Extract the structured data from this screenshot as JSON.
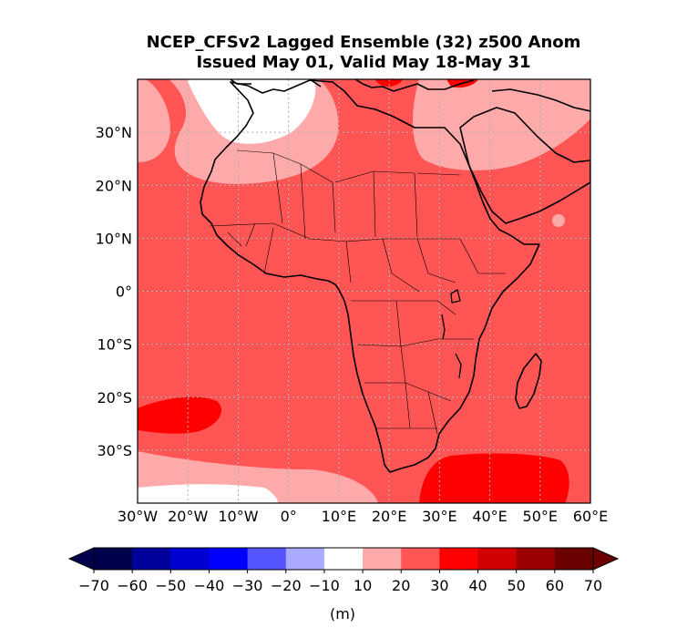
{
  "title_line1": "NCEP_CFSv2 Lagged Ensemble (32) z500 Anom",
  "title_line2": "Issued May 01, Valid May 18-May 31",
  "lat_labels": [
    {
      "value": 30,
      "label": "30°N"
    },
    {
      "value": 20,
      "label": "20°N"
    },
    {
      "value": 10,
      "label": "10°N"
    },
    {
      "value": 0,
      "label": "0°"
    },
    {
      "value": -10,
      "label": "10°S"
    },
    {
      "value": -20,
      "label": "20°S"
    },
    {
      "value": -30,
      "label": "30°S"
    }
  ],
  "lon_labels": [
    {
      "value": -30,
      "label": "30°W"
    },
    {
      "value": -20,
      "label": "20°W"
    },
    {
      "value": -10,
      "label": "10°W"
    },
    {
      "value": 0,
      "label": "0°"
    },
    {
      "value": 10,
      "label": "10°E"
    },
    {
      "value": 20,
      "label": "20°E"
    },
    {
      "value": 30,
      "label": "30°E"
    },
    {
      "value": 40,
      "label": "40°E"
    },
    {
      "value": 50,
      "label": "50°E"
    },
    {
      "value": 60,
      "label": "60°E"
    }
  ],
  "map_extent": {
    "lon_min": -30,
    "lon_max": 60,
    "lat_min": -40,
    "lat_max": 40
  },
  "colorbar": {
    "ticks": [
      "−70",
      "−60",
      "−50",
      "−40",
      "−30",
      "−20",
      "−10",
      "10",
      "20",
      "30",
      "40",
      "50",
      "60",
      "70"
    ],
    "colors": [
      "#00004c",
      "#00009a",
      "#0000d2",
      "#0000ff",
      "#5555ff",
      "#aaaaff",
      "#ffffff",
      "#ffaaaa",
      "#ff5555",
      "#ff0000",
      "#d20000",
      "#9a0000",
      "#6a0000"
    ],
    "under_color": "#00004c",
    "over_color": "#6a0000",
    "units": "(m)"
  },
  "field_colors": {
    "c10_20": "#ffaaaa",
    "c20_30": "#ff5555",
    "c30_40": "#ff0000",
    "neutral": "#ffffff"
  }
}
